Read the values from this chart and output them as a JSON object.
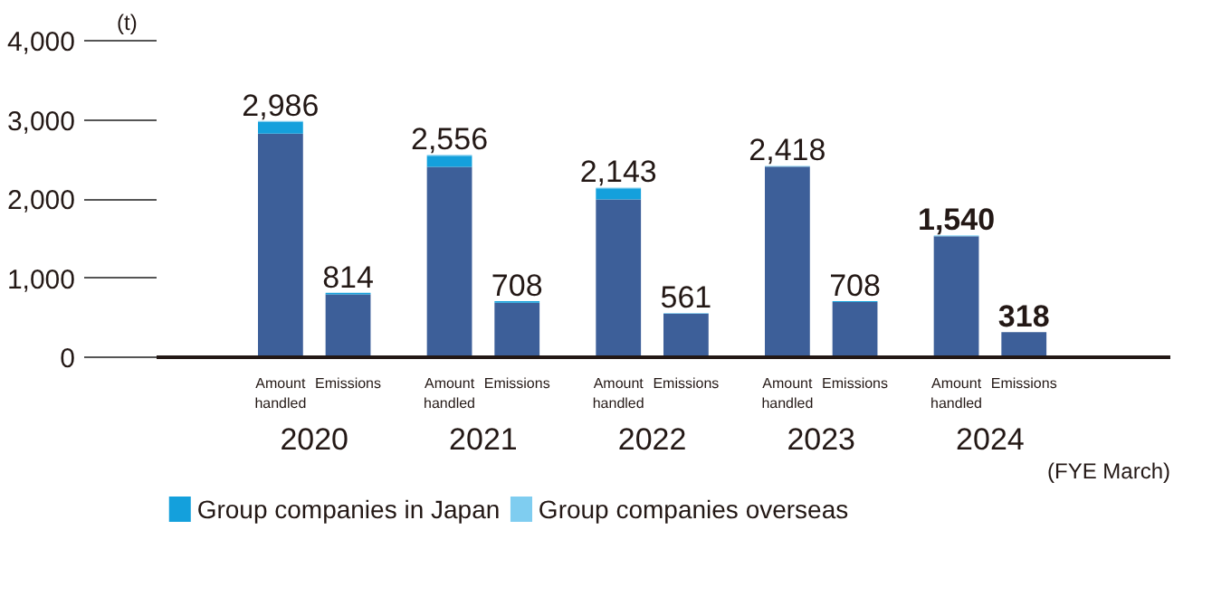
{
  "chart_data": {
    "type": "bar",
    "stacked": true,
    "categories": [
      "Amount handled",
      "Emissions",
      "Amount handled",
      "Emissions",
      "Amount handled",
      "Emissions",
      "Amount handled",
      "Emissions",
      "Amount handled",
      "Emissions"
    ],
    "series": [
      {
        "color": "#3d5f99",
        "values": [
          2826,
          794,
          2406,
          688,
          1993,
          551,
          2408,
          698,
          1530,
          318
        ]
      },
      {
        "name": "Group companies in Japan",
        "color": "#14a0dc",
        "values": [
          150,
          20,
          140,
          20,
          140,
          0,
          0,
          10,
          0,
          0
        ]
      },
      {
        "name": "Group companies overseas",
        "color": "#7fcdf0",
        "values": [
          10,
          0,
          10,
          0,
          10,
          10,
          10,
          0,
          10,
          0
        ]
      }
    ],
    "totals": [
      "2,986",
      "814",
      "2,556",
      "708",
      "2,143",
      "561",
      "2,418",
      "708",
      "1,540",
      "318"
    ],
    "ylabel": "(t)",
    "xlabel": "(FYE March)",
    "annotations": [
      "2020",
      "2021",
      "2022",
      "2023",
      "2024"
    ],
    "ylim": [
      0,
      4000
    ],
    "yticks": [
      {
        "value": 0,
        "label": "0"
      },
      {
        "value": 1000,
        "label": "1,000"
      },
      {
        "value": 2000,
        "label": "2,000"
      },
      {
        "value": 3000,
        "label": "3,000"
      },
      {
        "value": 4000,
        "label": "4,000"
      }
    ],
    "legend": "bottom left"
  }
}
